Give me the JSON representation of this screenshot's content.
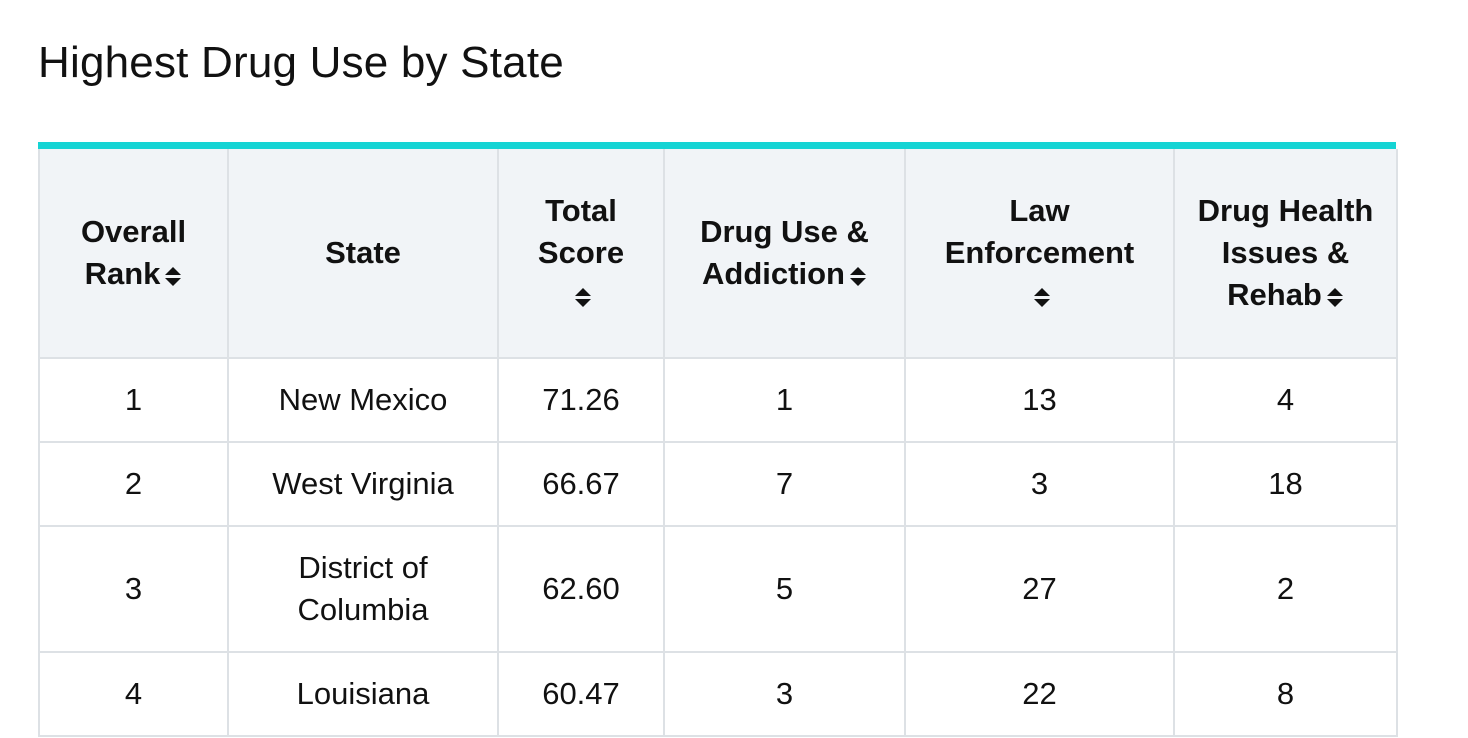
{
  "title": "Highest Drug Use by State",
  "colors": {
    "accent": "#15d4d4",
    "header_bg": "#f1f4f7",
    "border": "#dde1e5",
    "text": "#111111"
  },
  "table": {
    "columns": [
      {
        "label": "Overall Rank",
        "sortable": true
      },
      {
        "label": "State",
        "sortable": false
      },
      {
        "label": "Total Score",
        "sortable": true
      },
      {
        "label": "Drug Use & Addiction",
        "sortable": true
      },
      {
        "label": "Law Enforcement",
        "sortable": true
      },
      {
        "label": "Drug Health Issues & Rehab",
        "sortable": true
      }
    ],
    "rows": [
      [
        "1",
        "New Mexico",
        "71.26",
        "1",
        "13",
        "4"
      ],
      [
        "2",
        "West Virginia",
        "66.67",
        "7",
        "3",
        "18"
      ],
      [
        "3",
        "District of Columbia",
        "62.60",
        "5",
        "27",
        "2"
      ],
      [
        "4",
        "Louisiana",
        "60.47",
        "3",
        "22",
        "8"
      ]
    ],
    "sort_icon": "sort-up-down-icon"
  }
}
